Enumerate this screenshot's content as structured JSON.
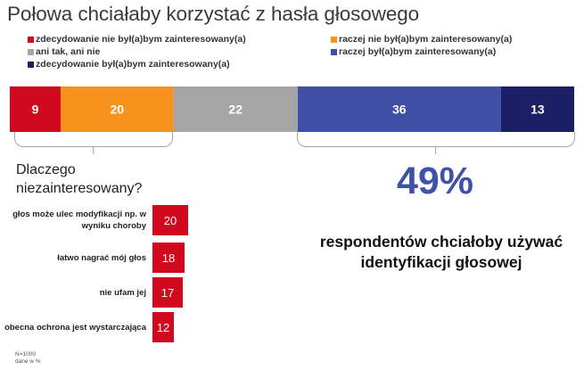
{
  "title": "Połowa chciałaby korzystać z hasła głosowego",
  "chart_data": [
    {
      "type": "bar",
      "orientation": "horizontal",
      "stacked": true,
      "series": [
        {
          "name": "zdecydowanie nie był(a)bym zainteresowany(a)",
          "value": 9,
          "color": "#d1091f"
        },
        {
          "name": "raczej nie był(a)bym zainteresowany(a)",
          "value": 20,
          "color": "#f7931d"
        },
        {
          "name": "ani tak, ani nie",
          "value": 22,
          "color": "#a5a5a5"
        },
        {
          "name": "raczej  był(a)bym zainteresowany(a)",
          "value": 36,
          "color": "#3f50a4"
        },
        {
          "name": "zdecydowanie był(a)bym zainteresowany(a)",
          "value": 13,
          "color": "#1b1f66"
        }
      ],
      "legend_position": "top"
    },
    {
      "type": "bar",
      "orientation": "horizontal",
      "title": "Dlaczego niezainteresowany?",
      "categories": [
        "głos może ulec modyfikacji np. w wyniku choroby",
        "łatwo nagrać mój głos",
        "nie ufam jej",
        "obecna ochrona jest wystarczająca"
      ],
      "values": [
        20,
        18,
        17,
        12
      ],
      "color": "#d1091f"
    }
  ],
  "highlight": {
    "value": "49%",
    "caption": "respondentów chciałoby używać identyfikacji głosowej"
  },
  "footnote": {
    "n": "N=1000",
    "unit": "dane w %"
  }
}
